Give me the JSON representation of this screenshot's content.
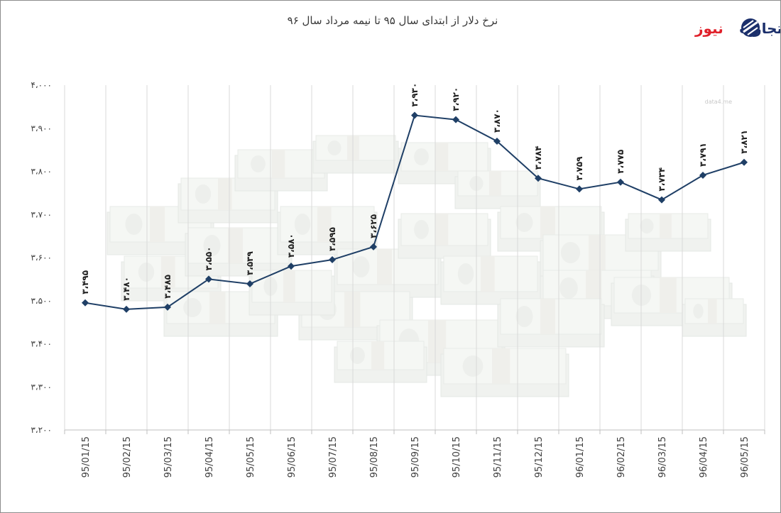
{
  "brand": {
    "name_part1": "تجارت",
    "name_part2": "نیوز",
    "color_part1": "#1b2f6b",
    "color_part2": "#e0202a",
    "icon": "logo-globe-icon"
  },
  "watermark": "data4.me",
  "chart_data": {
    "type": "line",
    "title": "نرخ دلار از ابتدای سال ۹۵ تا نیمه مرداد سال ۹۶",
    "categories": [
      "95/01/15",
      "95/02/15",
      "95/03/15",
      "95/04/15",
      "95/05/15",
      "95/06/15",
      "95/07/15",
      "95/08/15",
      "95/09/15",
      "95/10/15",
      "95/11/15",
      "95/12/15",
      "96/01/15",
      "96/02/15",
      "96/03/15",
      "96/04/15",
      "96/05/15"
    ],
    "series": [
      {
        "values": [
          3495,
          3480,
          3485,
          3550,
          3539,
          3580,
          3595,
          3625,
          3930,
          3920,
          3870,
          3784,
          3759,
          3775,
          3734,
          3791,
          3821
        ],
        "data_labels": [
          "۳،۴۹۵",
          "۳،۴۸۰",
          "۳،۴۸۵",
          "۳،۵۵۰",
          "۳،۵۳۹",
          "۳،۵۸۰",
          "۳،۵۹۵",
          "۳،۶۲۵",
          "۳،۹۳۰",
          "۳،۹۲۰",
          "۳،۸۷۰",
          "۳،۷۸۴",
          "۳،۷۵۹",
          "۳،۷۷۵",
          "۳،۷۳۴",
          "۳،۷۹۱",
          "۳،۸۲۱"
        ],
        "color": "#1f3f66",
        "marker": "diamond"
      }
    ],
    "ylim": [
      3200,
      4000
    ],
    "yticks": [
      3200,
      3300,
      3400,
      3500,
      3600,
      3700,
      3800,
      3900,
      4000
    ],
    "ytick_labels": [
      "۳،۲۰۰",
      "۳،۳۰۰",
      "۳،۴۰۰",
      "۳،۵۰۰",
      "۳،۶۰۰",
      "۳،۷۰۰",
      "۳،۸۰۰",
      "۳،۹۰۰",
      "۴،۰۰۰"
    ],
    "grid": "vertical",
    "xlabel": "",
    "ylabel": ""
  }
}
